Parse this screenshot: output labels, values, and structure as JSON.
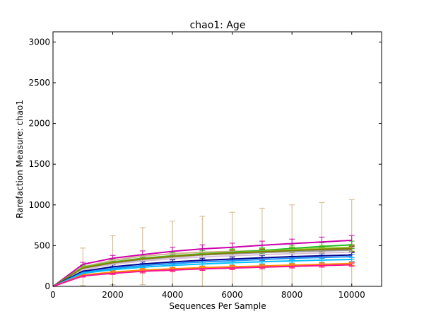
{
  "chart_data": {
    "type": "line",
    "title": "chao1: Age",
    "xlabel": "Sequences Per Sample",
    "ylabel": "Rarefaction Measure: chao1",
    "xlim": [
      0,
      11000
    ],
    "ylim": [
      0,
      3125
    ],
    "x_ticks": [
      0,
      2000,
      4000,
      6000,
      8000,
      10000
    ],
    "y_ticks": [
      0,
      500,
      1000,
      1500,
      2000,
      2500,
      3000
    ],
    "x": [
      0,
      1000,
      2000,
      3000,
      4000,
      5000,
      6000,
      7000,
      8000,
      9000,
      10000
    ],
    "legend": "none",
    "grid": false,
    "series": [
      {
        "color": "#d2b48c",
        "values": [
          0,
          240,
          320,
          370,
          400,
          420,
          430,
          440,
          445,
          450,
          455
        ],
        "errors": [
          0,
          230,
          300,
          350,
          400,
          440,
          480,
          520,
          555,
          580,
          610
        ]
      },
      {
        "color": "#cc00aa",
        "values": [
          0,
          270,
          345,
          390,
          430,
          460,
          480,
          505,
          525,
          545,
          565
        ],
        "errors": [
          0,
          25,
          35,
          45,
          50,
          50,
          50,
          50,
          55,
          60,
          60
        ]
      },
      {
        "color": "#22bb22",
        "values": [
          0,
          235,
          300,
          345,
          375,
          400,
          420,
          440,
          465,
          490,
          510
        ],
        "errors": [
          0,
          25,
          30,
          35,
          40,
          40,
          40,
          40,
          40,
          45,
          45
        ]
      },
      {
        "color": "#8b4513",
        "values": [
          0,
          220,
          290,
          335,
          365,
          390,
          405,
          420,
          435,
          445,
          455
        ],
        "errors": [
          0,
          20,
          25,
          30,
          30,
          30,
          35,
          35,
          35,
          35,
          35
        ]
      },
      {
        "color": "#999999",
        "values": [
          0,
          215,
          285,
          330,
          360,
          385,
          400,
          415,
          425,
          435,
          445
        ],
        "errors": [
          0,
          20,
          25,
          25,
          30,
          30,
          30,
          30,
          30,
          30,
          30
        ]
      },
      {
        "color": "#9acd32",
        "values": [
          0,
          230,
          295,
          340,
          370,
          395,
          415,
          430,
          450,
          470,
          480
        ],
        "errors": [
          0,
          20,
          25,
          30,
          30,
          30,
          35,
          35,
          35,
          35,
          35
        ]
      },
      {
        "color": "#d8bfd8",
        "values": [
          0,
          205,
          270,
          310,
          340,
          360,
          375,
          390,
          400,
          410,
          420
        ],
        "errors": [
          0,
          20,
          25,
          25,
          30,
          30,
          30,
          30,
          30,
          30,
          30
        ]
      },
      {
        "color": "#808000",
        "values": [
          0,
          225,
          292,
          337,
          368,
          392,
          410,
          425,
          440,
          455,
          465
        ],
        "errors": [
          0,
          20,
          25,
          30,
          30,
          30,
          35,
          35,
          35,
          35,
          35
        ]
      },
      {
        "color": "#00008b",
        "values": [
          0,
          185,
          240,
          275,
          300,
          320,
          335,
          350,
          365,
          375,
          385
        ],
        "errors": [
          0,
          20,
          25,
          25,
          25,
          25,
          25,
          30,
          30,
          30,
          30
        ]
      },
      {
        "color": "#1e90ff",
        "values": [
          0,
          170,
          220,
          255,
          280,
          300,
          315,
          330,
          345,
          355,
          365
        ],
        "errors": [
          0,
          20,
          25,
          25,
          25,
          25,
          25,
          25,
          25,
          30,
          30
        ]
      },
      {
        "color": "#00bfff",
        "values": [
          0,
          160,
          205,
          235,
          258,
          275,
          290,
          302,
          312,
          322,
          330
        ],
        "errors": [
          0,
          20,
          20,
          20,
          25,
          25,
          25,
          25,
          25,
          25,
          25
        ]
      },
      {
        "color": "#ff6347",
        "values": [
          0,
          135,
          170,
          195,
          210,
          225,
          235,
          245,
          255,
          265,
          275
        ],
        "errors": [
          0,
          15,
          20,
          20,
          20,
          20,
          20,
          20,
          20,
          20,
          20
        ]
      },
      {
        "color": "#ff8c00",
        "values": [
          0,
          140,
          175,
          200,
          215,
          230,
          240,
          250,
          260,
          270,
          280
        ],
        "errors": [
          0,
          15,
          20,
          20,
          20,
          20,
          20,
          20,
          20,
          20,
          20
        ]
      },
      {
        "color": "#ff1493",
        "values": [
          0,
          128,
          160,
          185,
          200,
          215,
          225,
          235,
          245,
          255,
          265
        ],
        "errors": [
          0,
          15,
          15,
          20,
          20,
          20,
          20,
          20,
          20,
          20,
          20
        ]
      }
    ]
  }
}
